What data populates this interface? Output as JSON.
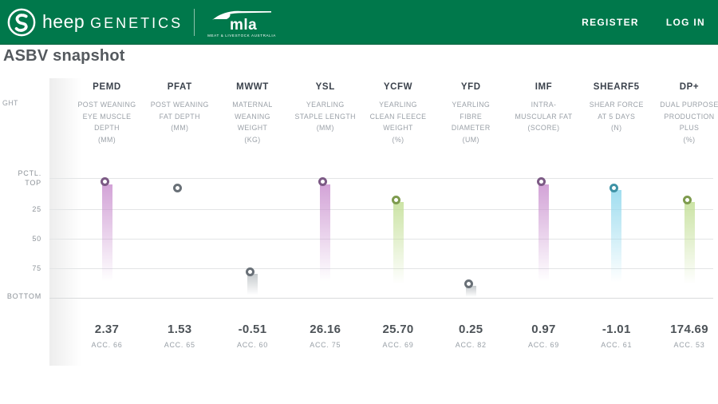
{
  "header": {
    "brand": {
      "icon": "sheep-genetics-s-icon",
      "text_rest": "heep",
      "text_caps": "GENETICS"
    },
    "mla": {
      "wordmark": "mla",
      "caption": "MEAT & LIVESTOCK AUSTRALIA"
    },
    "nav": {
      "register_label": "REGISTER",
      "login_label": "LOG IN"
    }
  },
  "page": {
    "title": "ASBV snapshot"
  },
  "chart_data": {
    "type": "scatter",
    "description": "ASBV percentile snapshot - one marker per trait on a TOP-to-BOTTOM percentile axis with fading value bars",
    "axis": {
      "pctl_caption": "PCTL.",
      "top_label": "TOP",
      "ticks": [
        "25",
        "50",
        "75"
      ],
      "bottom_label": "BOTTOM",
      "range": [
        0,
        100
      ]
    },
    "clipped_left_text": "GHT",
    "colors": {
      "purple": {
        "ring": "#7c5a85",
        "bar": "rgba(203,147,208,0.85)"
      },
      "gray": {
        "ring": "#697077",
        "bar": "rgba(150,158,163,0.55)"
      },
      "green": {
        "ring": "#7e9b4e",
        "bar": "rgba(195,223,150,0.85)"
      },
      "teal": {
        "ring": "#3f93a6",
        "bar": "rgba(150,218,238,0.9)"
      }
    },
    "columns": [
      {
        "code": "PEMD",
        "desc": [
          "POST WEANING",
          "EYE MUSCLE",
          "DEPTH",
          "(MM)"
        ],
        "value": "2.37",
        "acc": "ACC. 66",
        "percentile": 5,
        "color": "purple",
        "bar": true
      },
      {
        "code": "PFAT",
        "desc": [
          "POST WEANING",
          "FAT DEPTH",
          "(MM)"
        ],
        "value": "1.53",
        "acc": "ACC. 65",
        "percentile": 10,
        "color": "gray",
        "bar": false
      },
      {
        "code": "MWWT",
        "desc": [
          "MATERNAL",
          "WEANING",
          "WEIGHT",
          "(KG)"
        ],
        "value": "-0.51",
        "acc": "ACC. 60",
        "percentile": 80,
        "color": "gray",
        "bar": true
      },
      {
        "code": "YSL",
        "desc": [
          "YEARLING",
          "STAPLE LENGTH",
          "(MM)"
        ],
        "value": "26.16",
        "acc": "ACC. 75",
        "percentile": 5,
        "color": "purple",
        "bar": true
      },
      {
        "code": "YCFW",
        "desc": [
          "YEARLING",
          "CLEAN FLEECE",
          "WEIGHT",
          "(%)"
        ],
        "value": "25.70",
        "acc": "ACC. 69",
        "percentile": 20,
        "color": "green",
        "bar": true
      },
      {
        "code": "YFD",
        "desc": [
          "YEARLING",
          "FIBRE",
          "DIAMETER",
          "(UM)"
        ],
        "value": "0.25",
        "acc": "ACC. 82",
        "percentile": 90,
        "color": "gray",
        "bar": true
      },
      {
        "code": "IMF",
        "desc": [
          "INTRA-",
          "MUSCULAR FAT",
          "(SCORE)"
        ],
        "value": "0.97",
        "acc": "ACC. 69",
        "percentile": 5,
        "color": "purple",
        "bar": true
      },
      {
        "code": "SHEARF5",
        "desc": [
          "SHEAR FORCE",
          "AT 5 DAYS",
          "(N)"
        ],
        "value": "-1.01",
        "acc": "ACC. 61",
        "percentile": 10,
        "color": "teal",
        "bar": true
      },
      {
        "code": "DP+",
        "desc": [
          "DUAL PURPOSE",
          "PRODUCTION",
          "PLUS",
          "(%)"
        ],
        "value": "174.69",
        "acc": "ACC. 53",
        "percentile": 20,
        "color": "green",
        "bar": true
      }
    ]
  }
}
